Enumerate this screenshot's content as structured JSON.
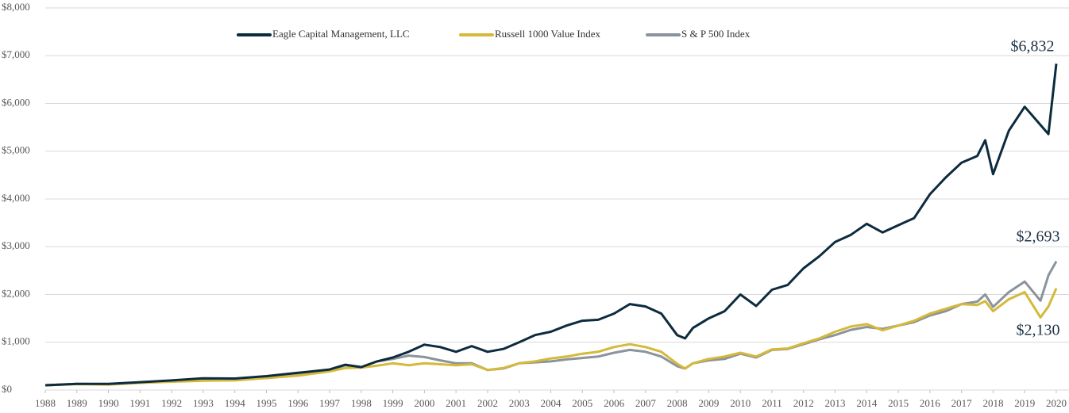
{
  "chart_data": {
    "type": "line",
    "x": [
      1988,
      1989,
      1990,
      1991,
      1992,
      1993,
      1994,
      1995,
      1996,
      1997,
      1997.5,
      1998,
      1998.5,
      1999,
      1999.5,
      2000,
      2000.5,
      2001,
      2001.5,
      2002,
      2002.5,
      2003,
      2003.5,
      2004,
      2004.5,
      2005,
      2005.5,
      2006,
      2006.5,
      2007,
      2007.5,
      2008,
      2008.25,
      2008.5,
      2009,
      2009.5,
      2010,
      2010.5,
      2011,
      2011.5,
      2012,
      2012.5,
      2013,
      2013.5,
      2014,
      2014.5,
      2015,
      2015.5,
      2016,
      2016.5,
      2017,
      2017.5,
      2017.75,
      2018,
      2018.5,
      2019,
      2019.5,
      2019.75,
      2020
    ],
    "series": [
      {
        "name": "Eagle Capital Management, LLC",
        "color": "#0d2b3e",
        "end_label": "$6,832",
        "values": [
          100,
          130,
          130,
          165,
          200,
          245,
          240,
          290,
          360,
          430,
          530,
          480,
          600,
          680,
          800,
          950,
          900,
          800,
          920,
          800,
          860,
          1000,
          1150,
          1220,
          1350,
          1450,
          1470,
          1600,
          1800,
          1750,
          1600,
          1150,
          1080,
          1300,
          1500,
          1650,
          2000,
          1760,
          2100,
          2200,
          2550,
          2800,
          3100,
          3250,
          3480,
          3300,
          3450,
          3600,
          4100,
          4450,
          4760,
          4900,
          5230,
          4520,
          5430,
          5930,
          5550,
          5360,
          6832
        ]
      },
      {
        "name": "Russell 1000 Value Index",
        "color": "#d4b93a",
        "end_label": "$2,130",
        "values": [
          100,
          125,
          115,
          150,
          175,
          195,
          200,
          250,
          300,
          390,
          460,
          470,
          510,
          560,
          520,
          560,
          540,
          520,
          540,
          420,
          460,
          560,
          600,
          660,
          700,
          760,
          800,
          900,
          960,
          900,
          800,
          550,
          450,
          560,
          650,
          700,
          780,
          700,
          850,
          870,
          980,
          1080,
          1220,
          1330,
          1380,
          1250,
          1350,
          1450,
          1600,
          1700,
          1800,
          1780,
          1860,
          1650,
          1900,
          2050,
          1520,
          1750,
          2130
        ]
      },
      {
        "name": "S & P 500 Index",
        "color": "#8b939c",
        "end_label": "$2,693",
        "values": [
          100,
          130,
          120,
          155,
          180,
          200,
          210,
          250,
          310,
          400,
          520,
          480,
          600,
          650,
          720,
          690,
          620,
          560,
          560,
          420,
          450,
          560,
          580,
          600,
          640,
          670,
          700,
          780,
          840,
          800,
          700,
          500,
          450,
          560,
          620,
          650,
          760,
          680,
          840,
          860,
          960,
          1060,
          1150,
          1260,
          1320,
          1280,
          1350,
          1420,
          1560,
          1650,
          1800,
          1850,
          2000,
          1740,
          2050,
          2270,
          1870,
          2400,
          2693
        ]
      }
    ],
    "xlim": [
      1988,
      2020
    ],
    "xticks": [
      1988,
      1989,
      1990,
      1991,
      1992,
      1993,
      1994,
      1995,
      1996,
      1997,
      1998,
      1999,
      2000,
      2001,
      2002,
      2003,
      2004,
      2005,
      2006,
      2007,
      2008,
      2009,
      2010,
      2011,
      2012,
      2013,
      2014,
      2015,
      2016,
      2017,
      2018,
      2019,
      2020
    ],
    "ylim": [
      0,
      8000
    ],
    "yticks": [
      {
        "value": 0,
        "label": "$0"
      },
      {
        "value": 1000,
        "label": "$1,000"
      },
      {
        "value": 2000,
        "label": "$2,000"
      },
      {
        "value": 3000,
        "label": "$3,000"
      },
      {
        "value": 4000,
        "label": "$4,000"
      },
      {
        "value": 5000,
        "label": "$5,000"
      },
      {
        "value": 6000,
        "label": "$6,000"
      },
      {
        "value": 7000,
        "label": "$7,000"
      },
      {
        "value": 8000,
        "label": "$8,000"
      }
    ],
    "grid": true,
    "legend": "top"
  }
}
